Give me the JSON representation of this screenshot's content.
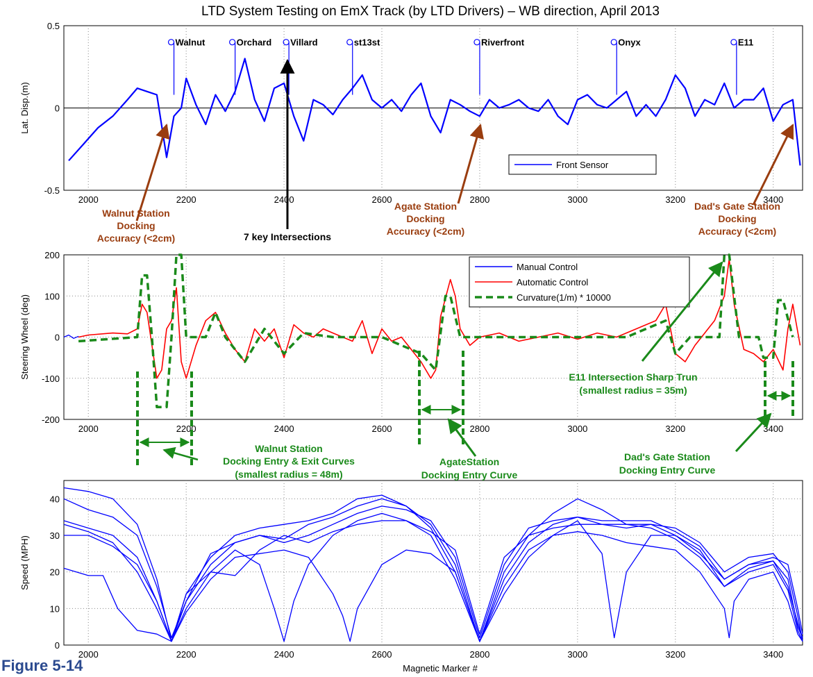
{
  "title": "LTD System Testing on EmX Track (by LTD Drivers) – WB direction, April 2013",
  "figure_caption": "Figure 5-14",
  "colors": {
    "blue": "#0000ff",
    "red": "#ff0000",
    "green": "#1a8a1a",
    "brown": "#9a3d0f",
    "black": "#000000"
  },
  "chart_data": [
    {
      "type": "line",
      "panel": "lateral-displacement",
      "ylabel": "Lat. Disp.(m)",
      "xlim": [
        1950,
        3460
      ],
      "ylim": [
        -0.5,
        0.5
      ],
      "yticks": [
        -0.5,
        0,
        0.5
      ],
      "xticks": [
        2000,
        2200,
        2400,
        2600,
        2800,
        3000,
        3200,
        3400
      ],
      "grid": true,
      "legend": {
        "placement": "bottom-right",
        "entries": [
          "Front Sensor"
        ]
      },
      "series": [
        {
          "name": "Front Sensor",
          "x": [
            1960,
            1990,
            2020,
            2050,
            2080,
            2100,
            2120,
            2140,
            2160,
            2175,
            2190,
            2200,
            2220,
            2240,
            2260,
            2280,
            2300,
            2320,
            2340,
            2360,
            2380,
            2400,
            2420,
            2440,
            2460,
            2480,
            2500,
            2520,
            2540,
            2560,
            2580,
            2600,
            2620,
            2640,
            2660,
            2680,
            2700,
            2720,
            2740,
            2760,
            2780,
            2800,
            2820,
            2840,
            2860,
            2880,
            2900,
            2920,
            2940,
            2960,
            2980,
            3000,
            3020,
            3040,
            3060,
            3080,
            3100,
            3120,
            3140,
            3160,
            3180,
            3200,
            3220,
            3240,
            3260,
            3280,
            3300,
            3320,
            3340,
            3360,
            3380,
            3400,
            3420,
            3440,
            3455
          ],
          "y": [
            -0.32,
            -0.22,
            -0.12,
            -0.05,
            0.05,
            0.12,
            0.1,
            0.08,
            -0.3,
            -0.05,
            0.0,
            0.18,
            0.02,
            -0.1,
            0.08,
            -0.02,
            0.1,
            0.3,
            0.05,
            -0.08,
            0.12,
            0.15,
            -0.05,
            -0.2,
            0.05,
            0.02,
            -0.04,
            0.05,
            0.12,
            0.2,
            0.05,
            0.0,
            0.05,
            -0.02,
            0.08,
            0.15,
            -0.05,
            -0.15,
            0.05,
            0.02,
            -0.02,
            -0.05,
            0.05,
            0.0,
            0.02,
            0.05,
            0.0,
            -0.02,
            0.05,
            -0.05,
            -0.1,
            0.05,
            0.08,
            0.02,
            0.0,
            0.05,
            0.1,
            -0.05,
            0.02,
            -0.05,
            0.05,
            0.2,
            0.12,
            -0.05,
            0.05,
            0.02,
            0.15,
            0.0,
            0.05,
            0.05,
            0.12,
            -0.08,
            0.02,
            0.05,
            -0.35
          ]
        }
      ],
      "stations": [
        {
          "name": "Walnut",
          "x": 2175
        },
        {
          "name": "Orchard",
          "x": 2300
        },
        {
          "name": "Villard",
          "x": 2410
        },
        {
          "name": "st13st",
          "x": 2540
        },
        {
          "name": "Riverfront",
          "x": 2800
        },
        {
          "name": "Onyx",
          "x": 3080
        },
        {
          "name": "E11",
          "x": 3325
        }
      ]
    },
    {
      "type": "line",
      "panel": "steering-wheel",
      "ylabel": "Steering Wheel (deg)",
      "xlim": [
        1950,
        3460
      ],
      "ylim": [
        -200,
        200
      ],
      "yticks": [
        -200,
        -100,
        0,
        100,
        200
      ],
      "xticks": [
        2000,
        2200,
        2400,
        2600,
        2800,
        3000,
        3200,
        3400
      ],
      "grid": true,
      "legend": {
        "placement": "top-right",
        "entries": [
          "Manual Control",
          "Automatic Control",
          "Curvature(1/m) * 10000"
        ]
      },
      "series": [
        {
          "name": "Manual Control",
          "x": [
            1950,
            1960,
            1970,
            1980
          ],
          "y": [
            0,
            5,
            -3,
            2
          ]
        },
        {
          "name": "Automatic Control",
          "x": [
            1980,
            2000,
            2050,
            2080,
            2100,
            2110,
            2120,
            2140,
            2150,
            2160,
            2170,
            2180,
            2190,
            2200,
            2220,
            2240,
            2260,
            2280,
            2300,
            2320,
            2340,
            2360,
            2380,
            2400,
            2420,
            2440,
            2460,
            2480,
            2500,
            2540,
            2560,
            2580,
            2600,
            2620,
            2640,
            2660,
            2680,
            2700,
            2710,
            2720,
            2740,
            2750,
            2760,
            2780,
            2800,
            2840,
            2880,
            2920,
            2960,
            3000,
            3040,
            3080,
            3120,
            3160,
            3180,
            3200,
            3220,
            3240,
            3260,
            3280,
            3300,
            3310,
            3320,
            3340,
            3360,
            3380,
            3400,
            3420,
            3430,
            3440,
            3455
          ],
          "y": [
            0,
            5,
            10,
            8,
            20,
            80,
            60,
            -100,
            -80,
            20,
            40,
            120,
            -60,
            -100,
            -20,
            40,
            60,
            10,
            -30,
            -60,
            20,
            -10,
            20,
            -50,
            30,
            10,
            0,
            20,
            10,
            -10,
            40,
            -40,
            20,
            -10,
            0,
            -30,
            -60,
            -100,
            -80,
            50,
            140,
            100,
            20,
            -20,
            0,
            10,
            -10,
            0,
            10,
            -5,
            10,
            0,
            20,
            40,
            80,
            -40,
            -60,
            -20,
            10,
            40,
            100,
            190,
            80,
            -30,
            -40,
            -60,
            -30,
            -80,
            20,
            80,
            -20
          ]
        },
        {
          "name": "Curvature(1/m) * 10000",
          "x": [
            1980,
            2100,
            2110,
            2120,
            2130,
            2140,
            2160,
            2170,
            2180,
            2190,
            2200,
            2240,
            2260,
            2280,
            2320,
            2360,
            2400,
            2440,
            2500,
            2560,
            2600,
            2680,
            2710,
            2730,
            2740,
            2760,
            2770,
            2780,
            2900,
            3000,
            3100,
            3180,
            3200,
            3230,
            3290,
            3300,
            3310,
            3330,
            3370,
            3380,
            3400,
            3410,
            3420,
            3440
          ],
          "y": [
            -10,
            0,
            150,
            150,
            0,
            -170,
            -170,
            0,
            200,
            200,
            0,
            0,
            60,
            0,
            -60,
            20,
            -40,
            10,
            0,
            0,
            0,
            -40,
            -80,
            100,
            100,
            0,
            0,
            0,
            0,
            0,
            0,
            40,
            -40,
            0,
            0,
            200,
            200,
            0,
            0,
            -50,
            -50,
            90,
            90,
            0
          ]
        }
      ]
    },
    {
      "type": "line",
      "panel": "speed",
      "ylabel": "Speed (MPH)",
      "xlabel": "Magnetic Marker #",
      "xlim": [
        1950,
        3460
      ],
      "ylim": [
        0,
        45
      ],
      "yticks": [
        0,
        10,
        20,
        30,
        40
      ],
      "xticks": [
        2000,
        2200,
        2400,
        2600,
        2800,
        3000,
        3200,
        3400
      ],
      "grid": true,
      "series": [
        {
          "name": "",
          "x": [
            1950,
            2000,
            2050,
            2100,
            2140,
            2170,
            2200,
            2250,
            2300,
            2350,
            2400,
            2450,
            2500,
            2550,
            2600,
            2650,
            2700,
            2750,
            2800,
            2850,
            2900,
            2950,
            3000,
            3050,
            3100,
            3150,
            3200,
            3250,
            3300,
            3350,
            3400,
            3430,
            3450,
            3460
          ],
          "y": [
            33,
            31,
            28,
            20,
            10,
            1,
            12,
            22,
            28,
            30,
            29,
            33,
            35,
            38,
            40,
            38,
            32,
            20,
            1,
            18,
            28,
            33,
            35,
            33,
            32,
            33,
            30,
            25,
            18,
            22,
            23,
            18,
            5,
            2
          ]
        },
        {
          "name": "",
          "x": [
            1950,
            2000,
            2050,
            2100,
            2140,
            2170,
            2200,
            2250,
            2300,
            2350,
            2400,
            2450,
            2500,
            2550,
            2600,
            2650,
            2700,
            2750,
            2800,
            2850,
            2900,
            2950,
            3000,
            3050,
            3100,
            3150,
            3200,
            3250,
            3300,
            3350,
            3400,
            3430,
            3450,
            3460
          ],
          "y": [
            43,
            42,
            40,
            33,
            18,
            1,
            14,
            24,
            30,
            32,
            33,
            34,
            36,
            40,
            41,
            38,
            33,
            22,
            1,
            20,
            30,
            36,
            40,
            37,
            33,
            33,
            32,
            28,
            20,
            24,
            25,
            20,
            8,
            1
          ]
        },
        {
          "name": "",
          "x": [
            1950,
            2000,
            2050,
            2100,
            2140,
            2170,
            2200,
            2250,
            2300,
            2350,
            2380,
            2400,
            2420,
            2450,
            2500,
            2550,
            2600,
            2650,
            2700,
            2750,
            2800,
            2850,
            2900,
            2950,
            3000,
            3050,
            3075,
            3100,
            3150,
            3200,
            3250,
            3300,
            3350,
            3400,
            3430,
            3450,
            3460
          ],
          "y": [
            34,
            32,
            30,
            24,
            12,
            1,
            10,
            20,
            26,
            22,
            10,
            1,
            12,
            22,
            30,
            34,
            36,
            34,
            30,
            18,
            1,
            16,
            26,
            30,
            34,
            25,
            2,
            20,
            30,
            30,
            26,
            16,
            20,
            22,
            15,
            4,
            1
          ]
        },
        {
          "name": "",
          "x": [
            1950,
            2000,
            2030,
            2060,
            2100,
            2140,
            2170,
            2200,
            2250,
            2300,
            2350,
            2400,
            2450,
            2500,
            2520,
            2535,
            2550,
            2600,
            2650,
            2700,
            2750,
            2800,
            2850,
            2900,
            2950,
            3000,
            3050,
            3100,
            3150,
            3200,
            3250,
            3300,
            3310,
            3320,
            3350,
            3400,
            3430,
            3450,
            3460
          ],
          "y": [
            21,
            19,
            19,
            10,
            4,
            3,
            1,
            9,
            18,
            24,
            25,
            26,
            24,
            14,
            8,
            1,
            10,
            22,
            26,
            25,
            20,
            1,
            14,
            24,
            30,
            31,
            30,
            28,
            27,
            26,
            20,
            10,
            2,
            12,
            18,
            20,
            12,
            3,
            1
          ]
        },
        {
          "name": "",
          "x": [
            1950,
            2000,
            2050,
            2100,
            2140,
            2170,
            2200,
            2250,
            2300,
            2350,
            2400,
            2450,
            2500,
            2550,
            2600,
            2650,
            2700,
            2750,
            2800,
            2850,
            2900,
            2950,
            3000,
            3050,
            3100,
            3150,
            3200,
            3250,
            3300,
            3350,
            3400,
            3430,
            3450,
            3460
          ],
          "y": [
            40,
            37,
            35,
            30,
            16,
            2,
            12,
            25,
            28,
            30,
            28,
            30,
            33,
            36,
            38,
            37,
            34,
            24,
            2,
            22,
            32,
            34,
            35,
            34,
            34,
            34,
            31,
            27,
            18,
            22,
            24,
            22,
            10,
            3
          ]
        },
        {
          "name": "",
          "x": [
            1950,
            2000,
            2050,
            2100,
            2140,
            2170,
            2200,
            2250,
            2300,
            2350,
            2400,
            2450,
            2500,
            2550,
            2600,
            2650,
            2700,
            2750,
            2800,
            2850,
            2900,
            2950,
            3000,
            3050,
            3100,
            3150,
            3200,
            3250,
            3300,
            3350,
            3400,
            3430,
            3450,
            3460
          ],
          "y": [
            30,
            30,
            27,
            22,
            12,
            1,
            14,
            20,
            19,
            26,
            30,
            28,
            31,
            33,
            34,
            34,
            31,
            26,
            3,
            24,
            30,
            32,
            33,
            33,
            33,
            32,
            29,
            24,
            16,
            21,
            23,
            16,
            6,
            2
          ]
        }
      ]
    }
  ],
  "annotations": {
    "walnut_docking": {
      "line1": "Walnut Station",
      "line2": "Docking",
      "line3": "Accuracy (<2cm)"
    },
    "key_intersections": "7 key Intersections",
    "agate_docking": {
      "line1": "Agate Station",
      "line2": "Docking",
      "line3": "Accuracy (<2cm)"
    },
    "dads_docking": {
      "line1": "Dad's Gate Station",
      "line2": "Docking",
      "line3": "Accuracy (<2cm)"
    },
    "walnut_curves": {
      "line1": "Walnut Station",
      "line2": "Docking Entry & Exit Curves",
      "line3": "(smallest radius = 48m)"
    },
    "agate_curve": {
      "line1": "AgateStation",
      "line2": "Docking Entry Curve"
    },
    "e11_turn": {
      "line1": "E11 Intersection Sharp Trun",
      "line2": "(smallest radius = 35m)"
    },
    "dads_curve": {
      "line1": "Dad's Gate Station",
      "line2": "Docking Entry Curve"
    }
  }
}
